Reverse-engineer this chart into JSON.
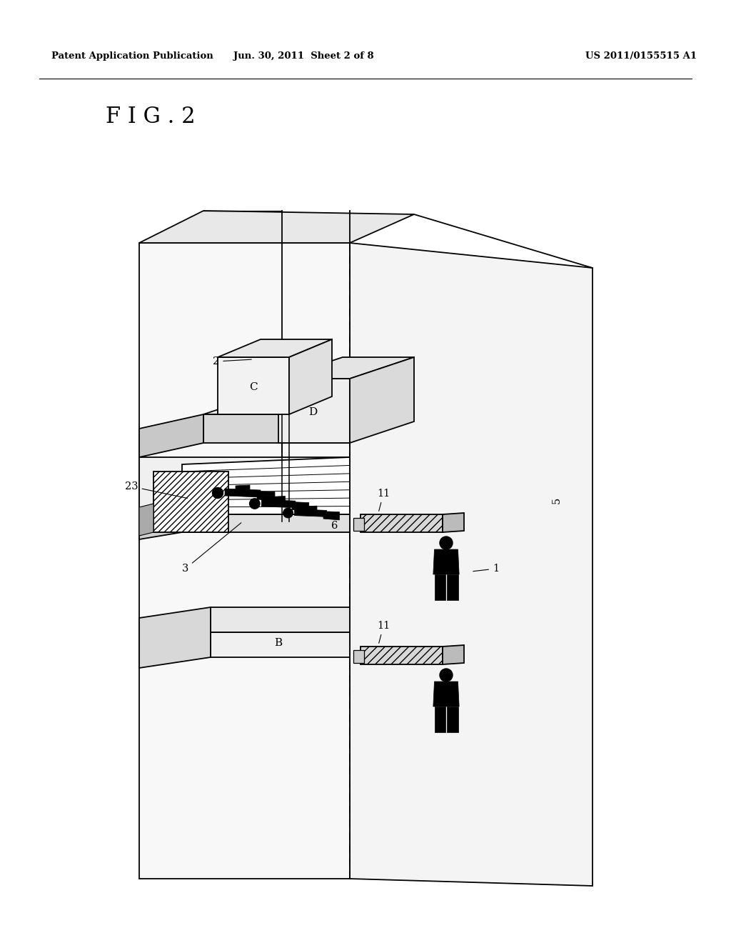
{
  "bg_color": "#ffffff",
  "header_left": "Patent Application Publication",
  "header_mid": "Jun. 30, 2011  Sheet 2 of 8",
  "header_right": "US 2011/0155515 A1",
  "fig_label": "F I G . 2",
  "col": "#000000",
  "lw": 1.3,
  "lw_thin": 0.9,
  "notes": [
    "Coordinate system: pixels 0-1024 wide, 0-1320 tall (y up from bottom)",
    "Diagram occupies approximately x:190-830, y:200-1150",
    "Key geometry:",
    "- Two vertical lines at x~395 and x~490 run from top to bottom",
    "- Large diagonal corridor wall: top-left(490,1060) to top-right(830,1110) to bottom-right(830,200) to bottom-left(490,200)",
    "- Elevator back wall (left): (195,1030) to (490,1060) to (490,200) to (195,210)",
    "- Top ceiling plane: slants from (195,1030) up to vanishing point",
    "- Machine boxes C and D on top shelf",
    "- Hatched box 23 on lobby floor",
    "- Platform/floor 3 with grid lines",
    "- Box B at bottom",
    "- Panel 11 x2 on corridor side",
    "- People silhouettes"
  ]
}
